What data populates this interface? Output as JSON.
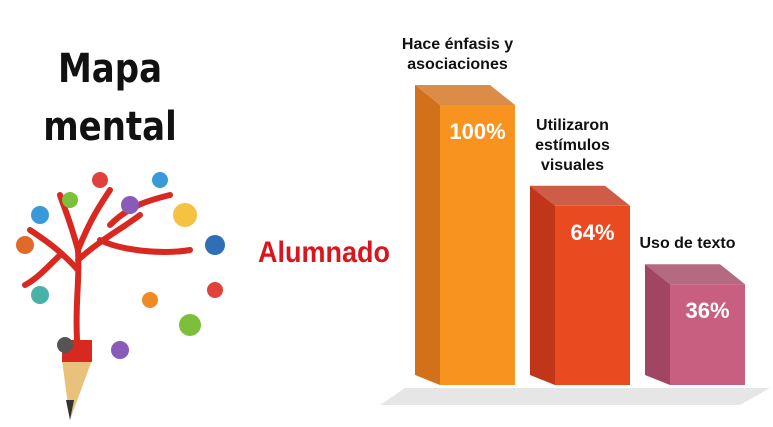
{
  "chart_data": {
    "type": "bar",
    "title": "Mapa mental",
    "subtitle": "Alumnado",
    "categories": [
      "Hace énfasis y asociaciones",
      "Utilizaron estímulos visuales",
      "Uso de texto"
    ],
    "values": [
      100,
      64,
      36
    ],
    "value_labels": [
      "100%",
      "64%",
      "36%"
    ],
    "colors": [
      "#f7931e",
      "#ea4a1f",
      "#c85f80"
    ],
    "side_colors": [
      "#d2711a",
      "#c13519",
      "#a14562"
    ]
  }
}
